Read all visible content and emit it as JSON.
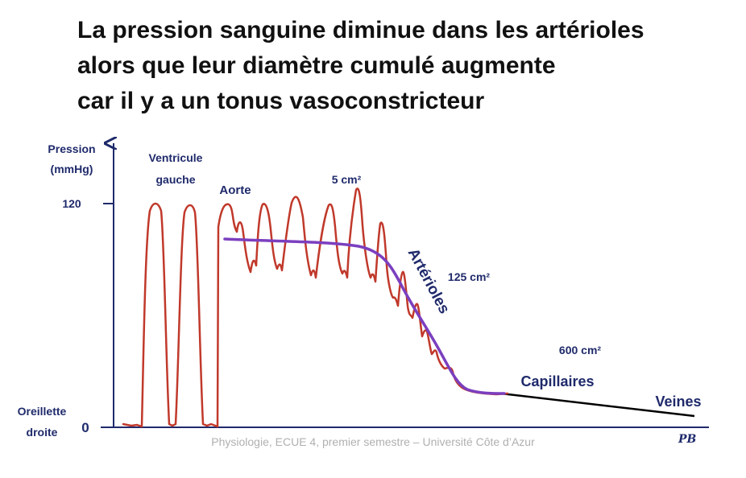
{
  "slide": {
    "title_lines": [
      "La pression sanguine diminue dans les artérioles",
      "alors que leur diamètre cumulé augmente",
      "car il y a un tonus vasoconstricteur"
    ],
    "footer": "Physiologie, ECUE 4, premier semestre – Université Côte d’Azur",
    "signature": "PB"
  },
  "diagram": {
    "y_axis_label_line1": "Pression",
    "y_axis_label_line2": "(mmHg)",
    "tick_120": "120",
    "tick_0": "0",
    "oreillette_line1": "Oreillette",
    "oreillette_line2": "droite",
    "ventricule_line1": "Ventricule",
    "ventricule_line2": "gauche",
    "aorte": "Aorte",
    "area_aorte": "5 cm²",
    "arterioles": "Artérioles",
    "area_arterioles": "125 cm²",
    "area_capillaires": "600 cm²",
    "capillaires": "Capillaires",
    "veines": "Veines",
    "colors": {
      "text": "#1f2a6b",
      "pulsatile_trace": "#c0392b",
      "mean_pressure": "#7b3fbf",
      "veins_line": "#000000",
      "axis": "#1f2a6b"
    }
  }
}
